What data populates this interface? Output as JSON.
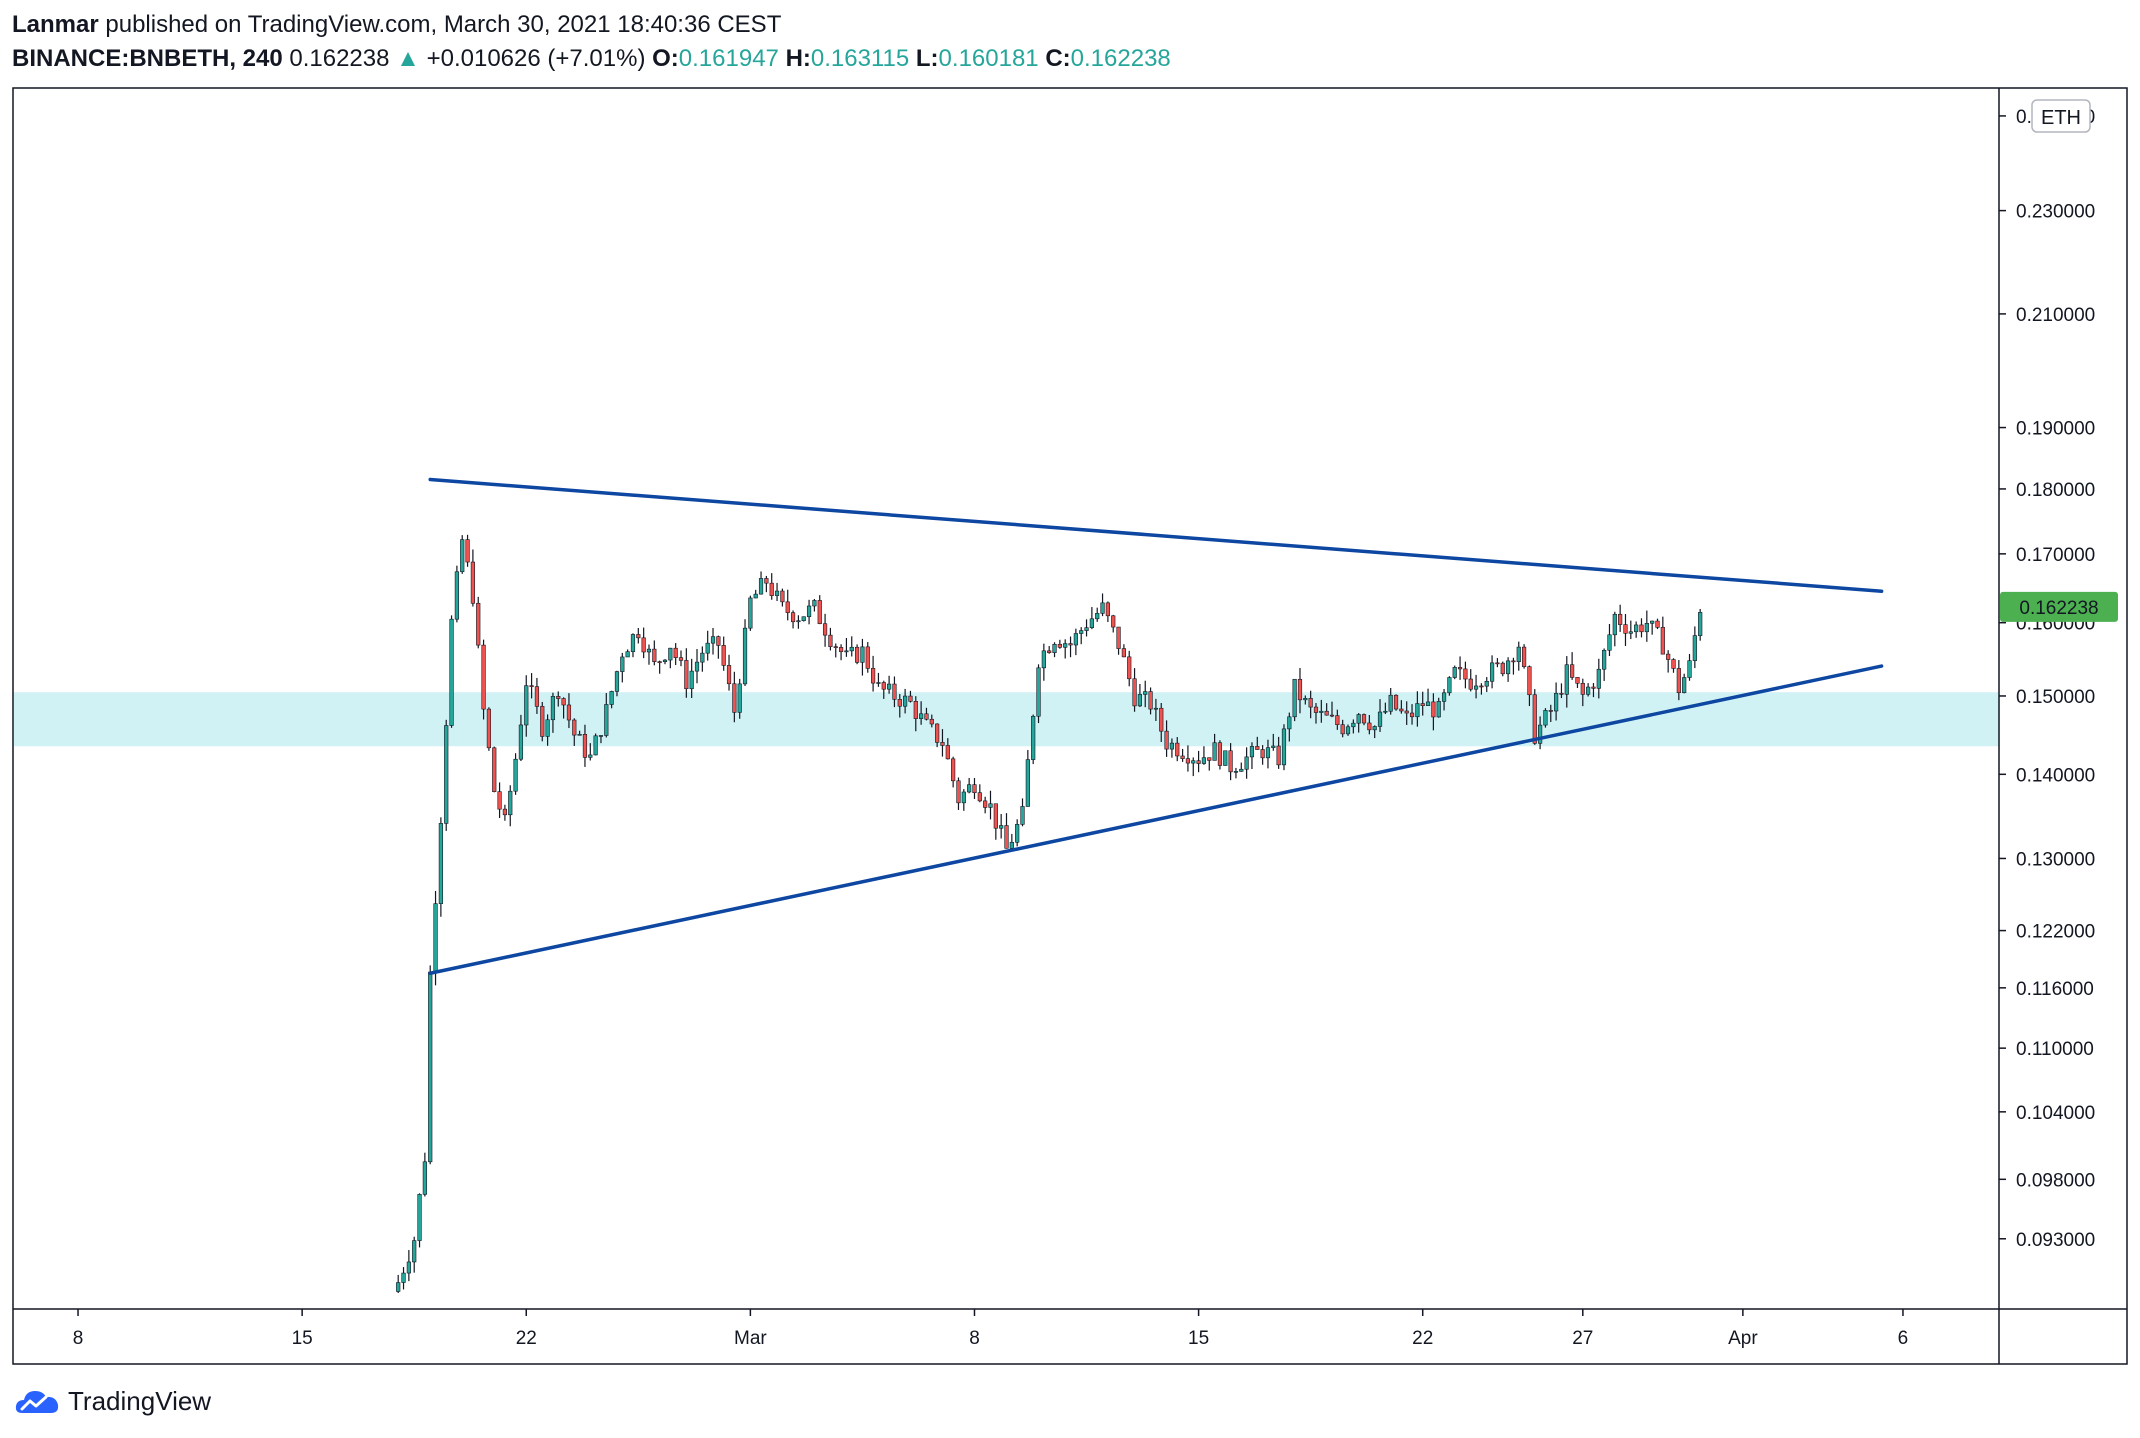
{
  "header": {
    "publisher": "Lanmar",
    "published_text": "published on TradingView.com, March 30, 2021 18:40:36 CEST",
    "symbol": "BINANCE:BNBETH, 240",
    "last": "0.162238",
    "change_arrow": "▲",
    "change": "+0.010626 (+7.01%)",
    "o_label": "O:",
    "o_value": "0.161947",
    "h_label": "H:",
    "h_value": "0.163115",
    "l_label": "L:",
    "l_value": "0.160181",
    "c_label": "C:",
    "c_value": "0.162238"
  },
  "footer": {
    "brand": "TradingView",
    "logo_icon": "tradingview-cloud-icon"
  },
  "colors": {
    "up": "#26a69a",
    "down": "#ef5350",
    "trendline": "#0d47a1",
    "zone": "#d1f2f5",
    "price_tag": "#4caf50"
  },
  "chart_data": {
    "type": "candlestick",
    "symbol": "BINANCE:BNBETH",
    "interval": "240",
    "currency_label": "ETH",
    "y_scale": "log",
    "ylim": [
      0.0875,
      0.256
    ],
    "y_ticks": [
      "0.093000",
      "0.098000",
      "0.104000",
      "0.110000",
      "0.116000",
      "0.122000",
      "0.130000",
      "0.140000",
      "0.150000",
      "0.160000",
      "0.170000",
      "0.180000",
      "0.190000",
      "0.210000",
      "0.230000",
      "0.250000"
    ],
    "x_ticks": [
      "8",
      "15",
      "22",
      "Mar",
      "8",
      "15",
      "22",
      "27",
      "Apr",
      "6"
    ],
    "x_tick_dates": [
      "2021-02-08",
      "2021-02-15",
      "2021-02-22",
      "2021-03-01",
      "2021-03-08",
      "2021-03-15",
      "2021-03-22",
      "2021-03-27",
      "2021-04-01",
      "2021-04-06"
    ],
    "xlim_dates": [
      "2021-02-06",
      "2021-04-09"
    ],
    "last_price_label": "0.162238",
    "last_price": 0.162238,
    "support_zone": [
      0.1435,
      0.1505
    ],
    "trendlines": [
      {
        "name": "upper",
        "start": {
          "date": "2021-02-19 00:00",
          "price": 0.1815
        },
        "end": {
          "date": "2021-04-05 08:00",
          "price": 0.1645
        }
      },
      {
        "name": "lower",
        "start": {
          "date": "2021-02-19 00:00",
          "price": 0.1175
        },
        "end": {
          "date": "2021-04-05 08:00",
          "price": 0.154
        }
      }
    ],
    "path": [
      [
        "2021-02-18 00:00",
        0.0895
      ],
      [
        "2021-02-18 12:00",
        0.093
      ],
      [
        "2021-02-18 20:00",
        0.1
      ],
      [
        "2021-02-19 00:00",
        0.1175
      ],
      [
        "2021-02-19 08:00",
        0.135
      ],
      [
        "2021-02-19 16:00",
        0.16
      ],
      [
        "2021-02-20 00:00",
        0.172
      ],
      [
        "2021-02-20 08:00",
        0.164
      ],
      [
        "2021-02-20 16:00",
        0.148
      ],
      [
        "2021-02-21 00:00",
        0.138
      ],
      [
        "2021-02-21 08:00",
        0.134
      ],
      [
        "2021-02-21 16:00",
        0.142
      ],
      [
        "2021-02-22 00:00",
        0.152
      ],
      [
        "2021-02-22 12:00",
        0.146
      ],
      [
        "2021-02-23 00:00",
        0.151
      ],
      [
        "2021-02-23 12:00",
        0.145
      ],
      [
        "2021-02-24 00:00",
        0.142
      ],
      [
        "2021-02-24 12:00",
        0.148
      ],
      [
        "2021-02-25 00:00",
        0.156
      ],
      [
        "2021-02-25 12:00",
        0.159
      ],
      [
        "2021-02-26 00:00",
        0.154
      ],
      [
        "2021-02-26 12:00",
        0.157
      ],
      [
        "2021-02-27 00:00",
        0.152
      ],
      [
        "2021-02-27 12:00",
        0.156
      ],
      [
        "2021-02-28 00:00",
        0.157
      ],
      [
        "2021-02-28 12:00",
        0.148
      ],
      [
        "2021-03-01 00:00",
        0.163
      ],
      [
        "2021-03-01 12:00",
        0.166
      ],
      [
        "2021-03-02 00:00",
        0.162
      ],
      [
        "2021-03-02 12:00",
        0.161
      ],
      [
        "2021-03-03 00:00",
        0.162
      ],
      [
        "2021-03-03 12:00",
        0.158
      ],
      [
        "2021-03-04 00:00",
        0.155
      ],
      [
        "2021-03-04 12:00",
        0.156
      ],
      [
        "2021-03-05 00:00",
        0.151
      ],
      [
        "2021-03-05 12:00",
        0.15
      ],
      [
        "2021-03-06 00:00",
        0.149
      ],
      [
        "2021-03-06 12:00",
        0.146
      ],
      [
        "2021-03-07 00:00",
        0.144
      ],
      [
        "2021-03-07 12:00",
        0.137
      ],
      [
        "2021-03-08 00:00",
        0.139
      ],
      [
        "2021-03-08 12:00",
        0.136
      ],
      [
        "2021-03-09 00:00",
        0.131
      ],
      [
        "2021-03-09 12:00",
        0.135
      ],
      [
        "2021-03-10 00:00",
        0.155
      ],
      [
        "2021-03-10 12:00",
        0.158
      ],
      [
        "2021-03-11 00:00",
        0.157
      ],
      [
        "2021-03-11 12:00",
        0.16
      ],
      [
        "2021-03-12 00:00",
        0.162
      ],
      [
        "2021-03-12 12:00",
        0.157
      ],
      [
        "2021-03-13 00:00",
        0.15
      ],
      [
        "2021-03-13 12:00",
        0.149
      ],
      [
        "2021-03-14 00:00",
        0.144
      ],
      [
        "2021-03-14 12:00",
        0.143
      ],
      [
        "2021-03-15 00:00",
        0.142
      ],
      [
        "2021-03-15 12:00",
        0.143
      ],
      [
        "2021-03-16 00:00",
        0.141
      ],
      [
        "2021-03-16 12:00",
        0.142
      ],
      [
        "2021-03-17 00:00",
        0.143
      ],
      [
        "2021-03-17 12:00",
        0.142
      ],
      [
        "2021-03-18 00:00",
        0.151
      ],
      [
        "2021-03-18 12:00",
        0.148
      ],
      [
        "2021-03-19 00:00",
        0.147
      ],
      [
        "2021-03-19 12:00",
        0.146
      ],
      [
        "2021-03-20 00:00",
        0.148
      ],
      [
        "2021-03-20 12:00",
        0.146
      ],
      [
        "2021-03-21 00:00",
        0.149
      ],
      [
        "2021-03-21 12:00",
        0.147
      ],
      [
        "2021-03-22 00:00",
        0.149
      ],
      [
        "2021-03-22 12:00",
        0.148
      ],
      [
        "2021-03-23 00:00",
        0.153
      ],
      [
        "2021-03-23 12:00",
        0.152
      ],
      [
        "2021-03-24 00:00",
        0.153
      ],
      [
        "2021-03-24 12:00",
        0.154
      ],
      [
        "2021-03-25 00:00",
        0.157
      ],
      [
        "2021-03-25 12:00",
        0.145
      ],
      [
        "2021-03-26 00:00",
        0.148
      ],
      [
        "2021-03-26 12:00",
        0.153
      ],
      [
        "2021-03-27 00:00",
        0.15
      ],
      [
        "2021-03-27 12:00",
        0.153
      ],
      [
        "2021-03-28 00:00",
        0.161
      ],
      [
        "2021-03-28 12:00",
        0.159
      ],
      [
        "2021-03-29 00:00",
        0.16
      ],
      [
        "2021-03-29 12:00",
        0.157
      ],
      [
        "2021-03-30 00:00",
        0.151
      ],
      [
        "2021-03-30 08:00",
        0.154
      ],
      [
        "2021-03-30 16:00",
        0.162238
      ]
    ]
  }
}
